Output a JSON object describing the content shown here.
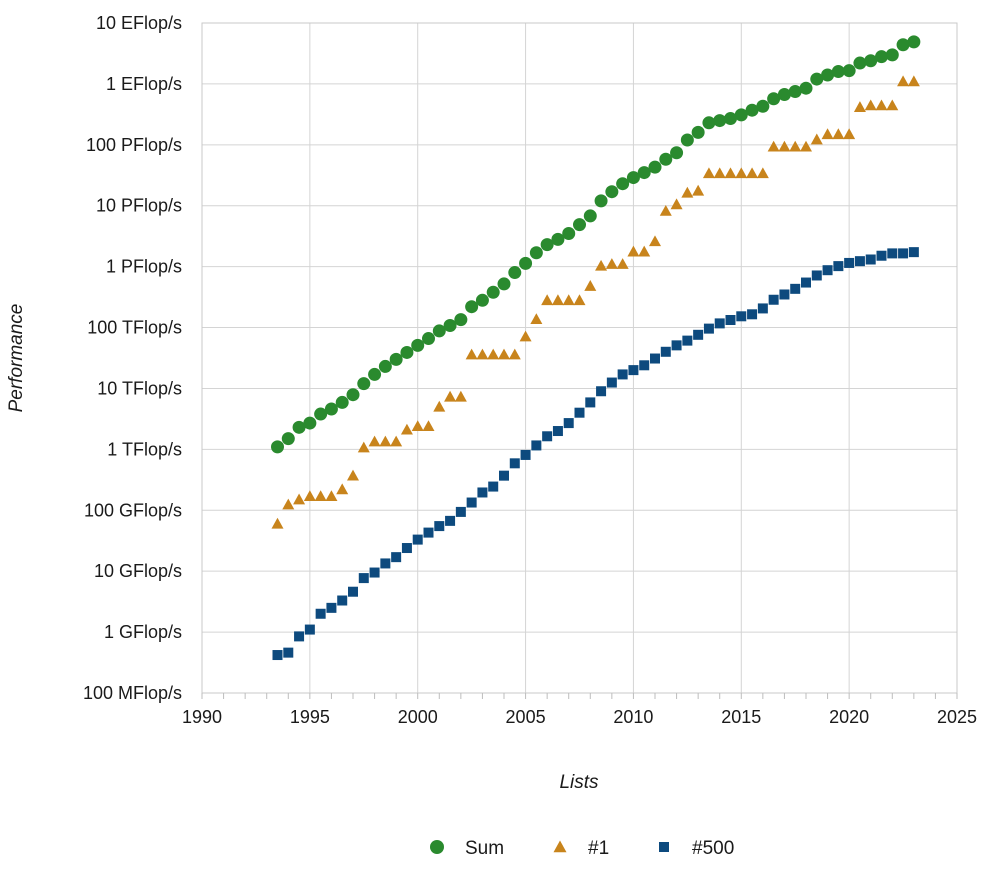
{
  "chart_data": {
    "type": "scatter",
    "title": "",
    "xlabel": "Lists",
    "ylabel": "Performance",
    "x_ticks": [
      1990,
      1995,
      2000,
      2005,
      2010,
      2015,
      2020,
      2025
    ],
    "xlim": [
      1990,
      2025
    ],
    "y_scale": "log",
    "ylim_exponent": [
      8,
      19
    ],
    "y_ticks": [
      {
        "exp": 8,
        "label": "100 MFlop/s"
      },
      {
        "exp": 9,
        "label": "1 GFlop/s"
      },
      {
        "exp": 10,
        "label": "10 GFlop/s"
      },
      {
        "exp": 11,
        "label": "100 GFlop/s"
      },
      {
        "exp": 12,
        "label": "1 TFlop/s"
      },
      {
        "exp": 13,
        "label": "10 TFlop/s"
      },
      {
        "exp": 14,
        "label": "100 TFlop/s"
      },
      {
        "exp": 15,
        "label": "1 PFlop/s"
      },
      {
        "exp": 16,
        "label": "10 PFlop/s"
      },
      {
        "exp": 17,
        "label": "100 PFlop/s"
      },
      {
        "exp": 18,
        "label": "1 EFlop/s"
      },
      {
        "exp": 19,
        "label": "10 EFlop/s"
      }
    ],
    "grid": true,
    "legend_position": "bottom",
    "x": [
      1993.5,
      1994.0,
      1994.5,
      1995.0,
      1995.5,
      1996.0,
      1996.5,
      1997.0,
      1997.5,
      1998.0,
      1998.5,
      1999.0,
      1999.5,
      2000.0,
      2000.5,
      2001.0,
      2001.5,
      2002.0,
      2002.5,
      2003.0,
      2003.5,
      2004.0,
      2004.5,
      2005.0,
      2005.5,
      2006.0,
      2006.5,
      2007.0,
      2007.5,
      2008.0,
      2008.5,
      2009.0,
      2009.5,
      2010.0,
      2010.5,
      2011.0,
      2011.5,
      2012.0,
      2012.5,
      2013.0,
      2013.5,
      2014.0,
      2014.5,
      2015.0,
      2015.5,
      2016.0,
      2016.5,
      2017.0,
      2017.5,
      2018.0,
      2018.5,
      2019.0,
      2019.5,
      2020.0,
      2020.5,
      2021.0,
      2021.5,
      2022.0,
      2022.5,
      2023.0
    ],
    "series": [
      {
        "name": "Sum",
        "marker": "circle",
        "color": "#2a8a2e",
        "values_flops": [
          1100000000000.0,
          1500000000000.0,
          2300000000000.0,
          2700000000000.0,
          3800000000000.0,
          4600000000000.0,
          5900000000000.0,
          7900000000000.0,
          12000000000000.0,
          17000000000000.0,
          23000000000000.0,
          30000000000000.0,
          39000000000000.0,
          51000000000000.0,
          66000000000000.0,
          88000000000000.0,
          108000000000000.0,
          135000000000000.0,
          220000000000000.0,
          280000000000000.0,
          380000000000000.0,
          520000000000000.0,
          800000000000000.0,
          1130000000000000.0,
          1690000000000000.0,
          2300000000000000.0,
          2800000000000000.0,
          3500000000000000.0,
          4900000000000000.0,
          6800000000000000.0,
          1.2e+16,
          1.7e+16,
          2.3e+16,
          2.9e+16,
          3.5e+16,
          4.3e+16,
          5.8e+16,
          7.4e+16,
          1.2e+17,
          1.6e+17,
          2.3e+17,
          2.5e+17,
          2.7e+17,
          3.1e+17,
          3.7e+17,
          4.3e+17,
          5.7e+17,
          6.7e+17,
          7.5e+17,
          8.5e+17,
          1.2e+18,
          1.4e+18,
          1.6e+18,
          1.65e+18,
          2.2e+18,
          2.4e+18,
          2.8e+18,
          3e+18,
          4.4e+18,
          4.9e+18
        ]
      },
      {
        "name": "#1",
        "marker": "triangle",
        "color": "#c8841c",
        "values_flops": [
          60000000000.0,
          124000000000.0,
          150000000000.0,
          170000000000.0,
          170000000000.0,
          170000000000.0,
          220000000000.0,
          370000000000.0,
          1070000000000.0,
          1340000000000.0,
          1340000000000.0,
          1340000000000.0,
          2100000000000.0,
          2400000000000.0,
          2400000000000.0,
          5000000000000.0,
          7300000000000.0,
          7300000000000.0,
          36000000000000.0,
          36000000000000.0,
          36000000000000.0,
          36000000000000.0,
          36000000000000.0,
          71000000000000.0,
          137000000000000.0,
          280000000000000.0,
          280000000000000.0,
          280000000000000.0,
          280000000000000.0,
          480000000000000.0,
          1030000000000000.0,
          1100000000000000.0,
          1100000000000000.0,
          1760000000000000.0,
          1760000000000000.0,
          2600000000000000.0,
          8200000000000000.0,
          1.05e+16,
          1.63e+16,
          1.76e+16,
          3.4e+16,
          3.4e+16,
          3.4e+16,
          3.4e+16,
          3.4e+16,
          3.4e+16,
          9.3e+16,
          9.3e+16,
          9.3e+16,
          9.3e+16,
          1.22e+17,
          1.49e+17,
          1.49e+17,
          1.49e+17,
          4.15e+17,
          4.42e+17,
          4.42e+17,
          4.42e+17,
          1.1e+18,
          1.1e+18
        ]
      },
      {
        "name": "#500",
        "marker": "square",
        "color": "#0d4a7e",
        "values_flops": [
          420000000.0,
          460000000.0,
          850000000.0,
          1100000000.0,
          2000000000.0,
          2500000000.0,
          3300000000.0,
          4600000000.0,
          7700000000.0,
          9500000000.0,
          13400000000.0,
          17000000000.0,
          24000000000.0,
          33000000000.0,
          43000000000.0,
          55000000000.0,
          67000000000.0,
          94000000000.0,
          134000000000.0,
          196000000000.0,
          245000000000.0,
          370000000000.0,
          590000000000.0,
          810000000000.0,
          1160000000000.0,
          1640000000000.0,
          2000000000000.0,
          2700000000000.0,
          4000000000000.0,
          5900000000000.0,
          9000000000000.0,
          12500000000000.0,
          17000000000000.0,
          20000000000000.0,
          24000000000000.0,
          31000000000000.0,
          40000000000000.0,
          51000000000000.0,
          61000000000000.0,
          76000000000000.0,
          96000000000000.0,
          117000000000000.0,
          133000000000000.0,
          153000000000000.0,
          165000000000000.0,
          206000000000000.0,
          286000000000000.0,
          349000000000000.0,
          432000000000000.0,
          548000000000000.0,
          716000000000000.0,
          874000000000000.0,
          1020000000000000.0,
          1150000000000000.0,
          1230000000000000.0,
          1310000000000000.0,
          1510000000000000.0,
          1650000000000000.0,
          1650000000000000.0,
          1730000000000000.0
        ]
      }
    ]
  }
}
